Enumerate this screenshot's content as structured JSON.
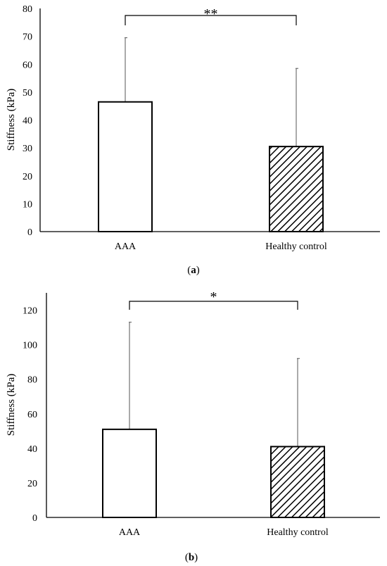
{
  "chart_data": [
    {
      "type": "bar",
      "panel_label": "a",
      "categories": [
        "AAA",
        "Healthy control"
      ],
      "values": [
        46.5,
        30.5
      ],
      "error_upper": [
        69.5,
        58.5
      ],
      "patterns": [
        "none",
        "diagonal-hatch"
      ],
      "ylabel": "Stiffness (kPa)",
      "ylim": [
        0,
        80
      ],
      "yticks": [
        0,
        10,
        20,
        30,
        40,
        50,
        60,
        70,
        80
      ],
      "significance": {
        "from": "AAA",
        "to": "Healthy control",
        "label": "**"
      },
      "grid": false
    },
    {
      "type": "bar",
      "panel_label": "b",
      "categories": [
        "AAA",
        "Healthy control"
      ],
      "values": [
        51,
        41
      ],
      "error_upper": [
        113,
        92
      ],
      "patterns": [
        "none",
        "diagonal-hatch"
      ],
      "ylabel": "Stiffness (kPa)",
      "ylim": [
        0,
        130
      ],
      "yticks": [
        0,
        20,
        40,
        60,
        80,
        100,
        120
      ],
      "significance": {
        "from": "AAA",
        "to": "Healthy control",
        "label": "*"
      },
      "grid": false
    }
  ]
}
